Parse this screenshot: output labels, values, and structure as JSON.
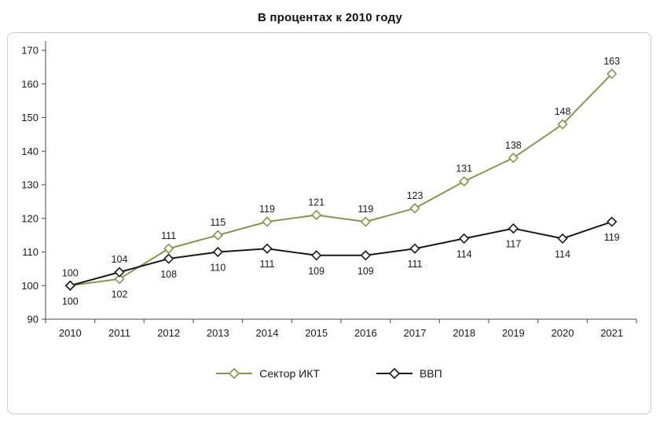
{
  "chart_data": {
    "type": "line",
    "title": "В процентах к 2010 году",
    "categories": [
      "2010",
      "2011",
      "2012",
      "2013",
      "2014",
      "2015",
      "2016",
      "2017",
      "2018",
      "2019",
      "2020",
      "2021"
    ],
    "series": [
      {
        "name": "Сектор ИКТ",
        "color": "#7d9c45",
        "values": [
          100,
          102,
          111,
          115,
          119,
          121,
          119,
          123,
          131,
          138,
          148,
          163
        ]
      },
      {
        "name": "ВВП",
        "color": "#1a1a1a",
        "values": [
          100,
          104,
          108,
          110,
          111,
          109,
          109,
          111,
          114,
          117,
          114,
          119
        ]
      }
    ],
    "ylim": [
      90,
      170
    ],
    "ytick_step": 10,
    "grid": false,
    "marker": "diamond",
    "marker_fill": "#ffffff",
    "legend_position": "bottom",
    "axis_color": "#4a4a4a",
    "data_labels": true
  }
}
